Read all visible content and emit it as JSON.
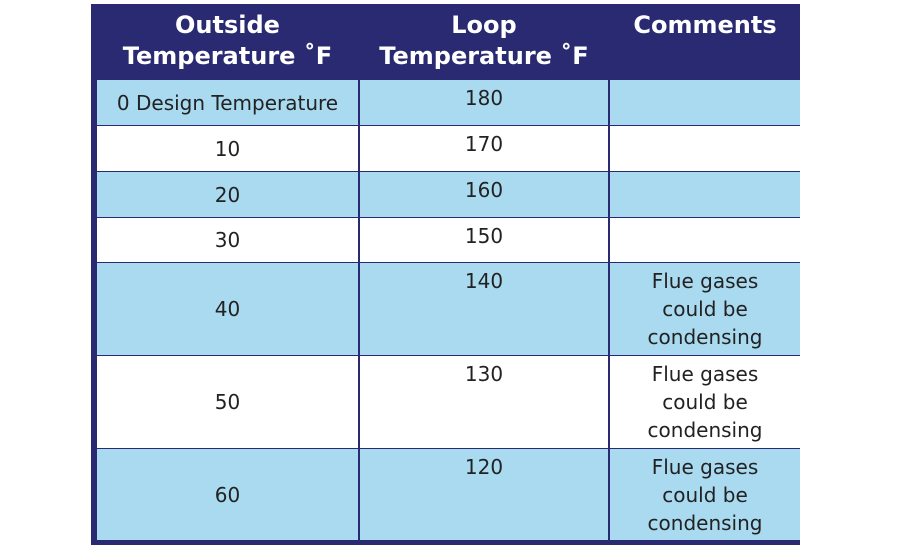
{
  "table": {
    "header": [
      "Outside Temperature ˚F",
      "Loop Temperature ˚F",
      "Comments"
    ],
    "rows": [
      {
        "outside": "0 Design Temperature",
        "loop": "180"
      },
      {
        "outside": "10",
        "loop": "170"
      },
      {
        "outside": "20",
        "loop": "160"
      },
      {
        "outside": "30",
        "loop": "150"
      },
      {
        "outside": "40",
        "loop": "140",
        "comment": "Flue gases could be condensing"
      },
      {
        "outside": "50",
        "loop": "130",
        "comment": "Flue gases could be condensing"
      },
      {
        "outside": "60",
        "loop": "120",
        "comment": "Flue gases could be condensing"
      }
    ]
  }
}
